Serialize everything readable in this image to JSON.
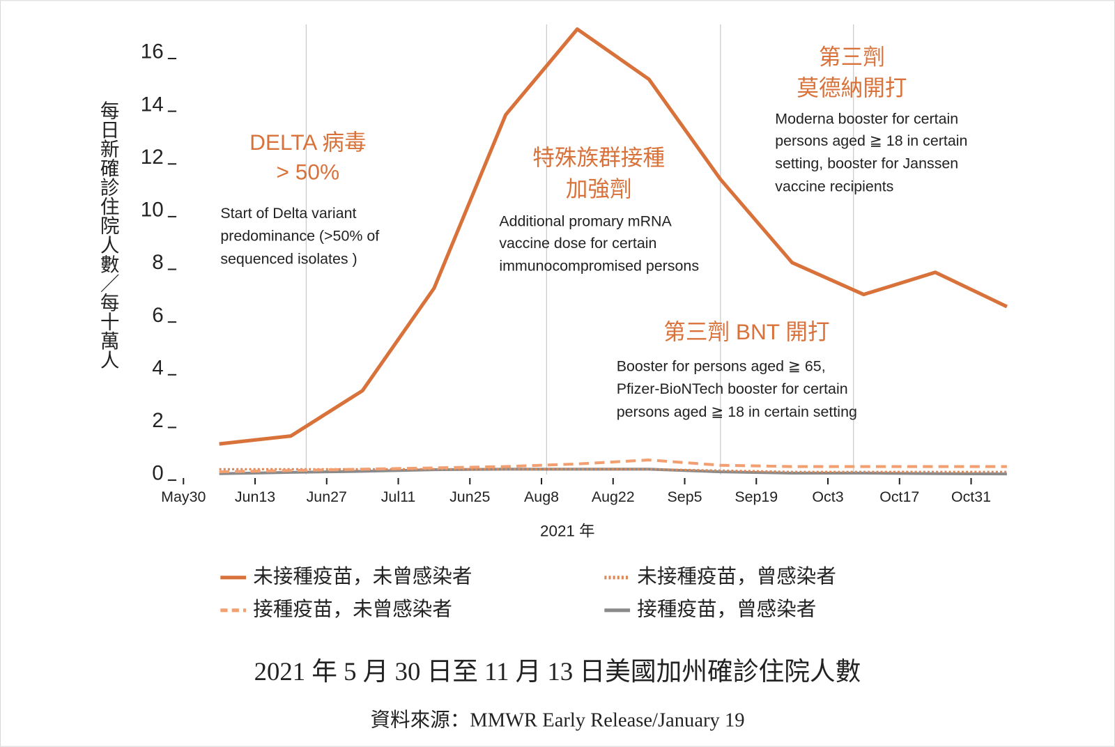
{
  "chart_data": {
    "type": "line",
    "xlabel": "2021 年",
    "ylabel": "每日新確診住院人數／每十萬人",
    "x": [
      7,
      21,
      35,
      49,
      63,
      77,
      91,
      105,
      119,
      133,
      147,
      161
    ],
    "xlim": [
      0,
      161
    ],
    "xticks": [
      {
        "value": 0,
        "label": "May30"
      },
      {
        "value": 14,
        "label": "Jun13"
      },
      {
        "value": 28,
        "label": "Jun27"
      },
      {
        "value": 42,
        "label": "Jul11"
      },
      {
        "value": 56,
        "label": "Jun25"
      },
      {
        "value": 70,
        "label": "Aug8"
      },
      {
        "value": 84,
        "label": "Aug22"
      },
      {
        "value": 98,
        "label": "Sep5"
      },
      {
        "value": 112,
        "label": "Sep19"
      },
      {
        "value": 126,
        "label": "Oct3"
      },
      {
        "value": 140,
        "label": "Oct17"
      },
      {
        "value": 154,
        "label": "Oct31"
      }
    ],
    "ylim": [
      0,
      17
    ],
    "yticks": [
      0,
      2,
      4,
      6,
      8,
      10,
      12,
      14,
      16
    ],
    "event_lines": [
      24,
      71,
      105,
      131
    ],
    "series": [
      {
        "name": "未接種疫苗，未曾感染者",
        "color": "#d8723a",
        "style": "solid",
        "values": [
          1.16,
          1.46,
          3.18,
          7.07,
          13.65,
          16.9,
          15.0,
          11.2,
          8.04,
          6.83,
          7.67,
          6.37
        ]
      },
      {
        "name": "未接種疫苗，曾感染者",
        "color": "#d9895a",
        "style": "dotted",
        "values": [
          0.2,
          0.2,
          0.2,
          0.2,
          0.2,
          0.2,
          0.2,
          0.15,
          0.1,
          0.1,
          0.1,
          0.1
        ]
      },
      {
        "name": "接種疫苗，未曾感染者",
        "color": "#f2a072",
        "style": "dashed",
        "values": [
          0.1,
          0.15,
          0.2,
          0.25,
          0.3,
          0.4,
          0.55,
          0.35,
          0.3,
          0.3,
          0.3,
          0.3
        ]
      },
      {
        "name": "接種疫苗，曾感染者",
        "color": "#8a8a8a",
        "style": "solid",
        "values": [
          0.03,
          0.08,
          0.12,
          0.18,
          0.2,
          0.2,
          0.2,
          0.1,
          0.05,
          0.05,
          0.03,
          0.02
        ]
      }
    ],
    "annotations": [
      {
        "title": [
          "DELTA 病毒",
          "> 50%"
        ],
        "text": [
          "Start of Delta variant",
          "predominance (>50% of",
          "sequenced isolates )"
        ]
      },
      {
        "title": [
          "特殊族群接種",
          "加強劑"
        ],
        "text": [
          "Additional promary mRNA",
          "vaccine dose for certain",
          "immunocompromised persons"
        ]
      },
      {
        "title": [
          "第三劑",
          "莫德納開打"
        ],
        "text": [
          "Moderna booster for certain",
          "persons aged ≧ 18 in certain",
          "setting, booster for Janssen",
          "vaccine recipients"
        ]
      },
      {
        "title": [
          "第三劑 BNT 開打"
        ],
        "text": [
          "Booster for persons aged ≧ 65,",
          "Pfizer-BioNTech booster for certain",
          "persons aged  ≧ 18 in certain setting"
        ]
      }
    ]
  },
  "caption": "2021 年 5 月 30 日至 11 月 13 日美國加州確診住院人數",
  "source": "資料來源：MMWR  Early Release/January 19"
}
